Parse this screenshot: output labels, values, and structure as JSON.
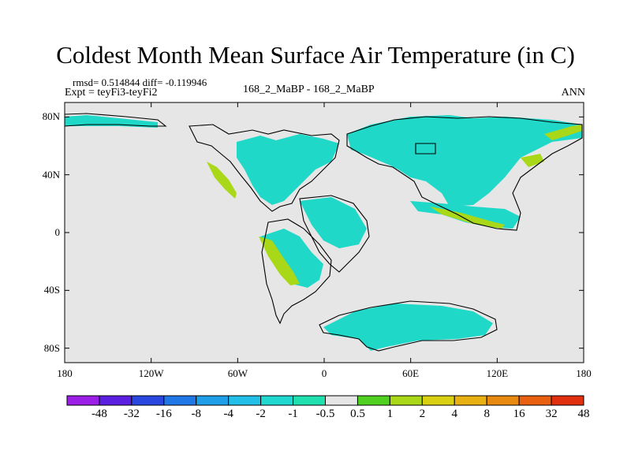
{
  "chart_data": {
    "type": "heatmap",
    "title": "Coldest Month Mean Surface Air Temperature (in C)",
    "stats_label": "rmsd= 0.514844 diff= -0.119946",
    "experiment_label": "Expt = teyFi3-teyFi2",
    "center_label": "168_2_MaBP - 168_2_MaBP",
    "season": "ANN",
    "x_ticks": [
      {
        "value": -180,
        "label": "180"
      },
      {
        "value": -120,
        "label": "120W"
      },
      {
        "value": -60,
        "label": "60W"
      },
      {
        "value": 0,
        "label": "0"
      },
      {
        "value": 60,
        "label": "60E"
      },
      {
        "value": 120,
        "label": "120E"
      },
      {
        "value": 180,
        "label": "180"
      }
    ],
    "y_ticks": [
      {
        "value": 80,
        "label": "80N"
      },
      {
        "value": 40,
        "label": "40N"
      },
      {
        "value": 0,
        "label": "0"
      },
      {
        "value": -40,
        "label": "40S"
      },
      {
        "value": -80,
        "label": "80S"
      }
    ],
    "xlim": [
      -180,
      180
    ],
    "ylim": [
      -90,
      90
    ],
    "colorbar": {
      "labels": [
        "-48",
        "-32",
        "-16",
        "-8",
        "-4",
        "-2",
        "-1",
        "-0.5",
        "0.5",
        "1",
        "2",
        "4",
        "8",
        "16",
        "32",
        "48"
      ],
      "colors": [
        "#9b1fe6",
        "#5a1fe0",
        "#2a47e0",
        "#1f78e6",
        "#1f9fe8",
        "#22c0e8",
        "#20d8d0",
        "#20e0b0",
        "#e6e6e6",
        "#50d020",
        "#a8d818",
        "#d8d010",
        "#e8b010",
        "#e88a10",
        "#e86010",
        "#e03010"
      ]
    }
  }
}
